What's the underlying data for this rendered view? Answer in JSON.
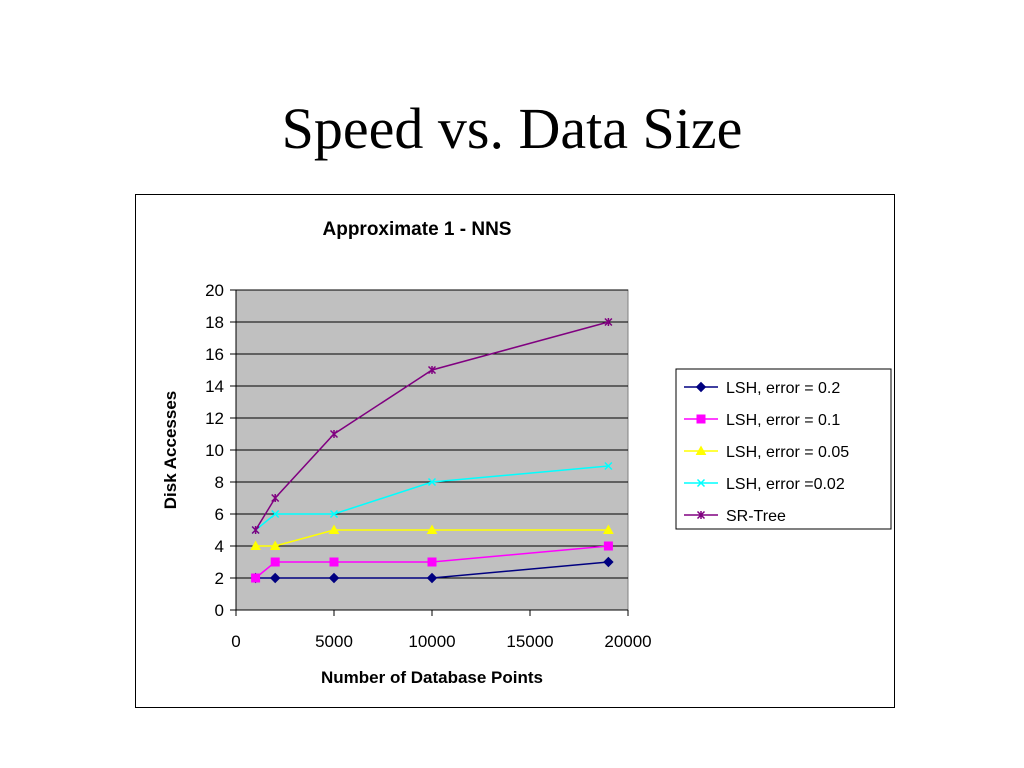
{
  "slide": {
    "title": "Speed vs. Data Size"
  },
  "chart_data": {
    "type": "line",
    "title": "Approximate 1 - NNS",
    "xlabel": "Number of Database Points",
    "ylabel": "Disk Accesses",
    "xlim": [
      0,
      20000
    ],
    "ylim": [
      0,
      20
    ],
    "xticks": [
      0,
      5000,
      10000,
      15000,
      20000
    ],
    "yticks": [
      0,
      2,
      4,
      6,
      8,
      10,
      12,
      14,
      16,
      18,
      20
    ],
    "grid": "horizontal",
    "plot_background": "#c0c0c0",
    "legend_position": "right",
    "series": [
      {
        "name": "LSH, error = 0.2",
        "color": "#000080",
        "marker": "diamond",
        "x": [
          1000,
          2000,
          5000,
          10000,
          19000
        ],
        "y": [
          2,
          2,
          2,
          2,
          3
        ]
      },
      {
        "name": "LSH, error = 0.1",
        "color": "#ff00ff",
        "marker": "square",
        "x": [
          1000,
          2000,
          5000,
          10000,
          19000
        ],
        "y": [
          2,
          3,
          3,
          3,
          4
        ]
      },
      {
        "name": "LSH, error = 0.05",
        "color": "#ffff00",
        "marker": "triangle",
        "x": [
          1000,
          2000,
          5000,
          10000,
          19000
        ],
        "y": [
          4,
          4,
          5,
          5,
          5
        ]
      },
      {
        "name": "LSH, error =0.02",
        "color": "#00ffff",
        "marker": "x",
        "x": [
          1000,
          2000,
          5000,
          10000,
          19000
        ],
        "y": [
          5,
          6,
          6,
          8,
          9
        ]
      },
      {
        "name": "SR-Tree",
        "color": "#800080",
        "marker": "star",
        "x": [
          1000,
          2000,
          5000,
          10000,
          19000
        ],
        "y": [
          5,
          7,
          11,
          15,
          18
        ]
      }
    ]
  }
}
